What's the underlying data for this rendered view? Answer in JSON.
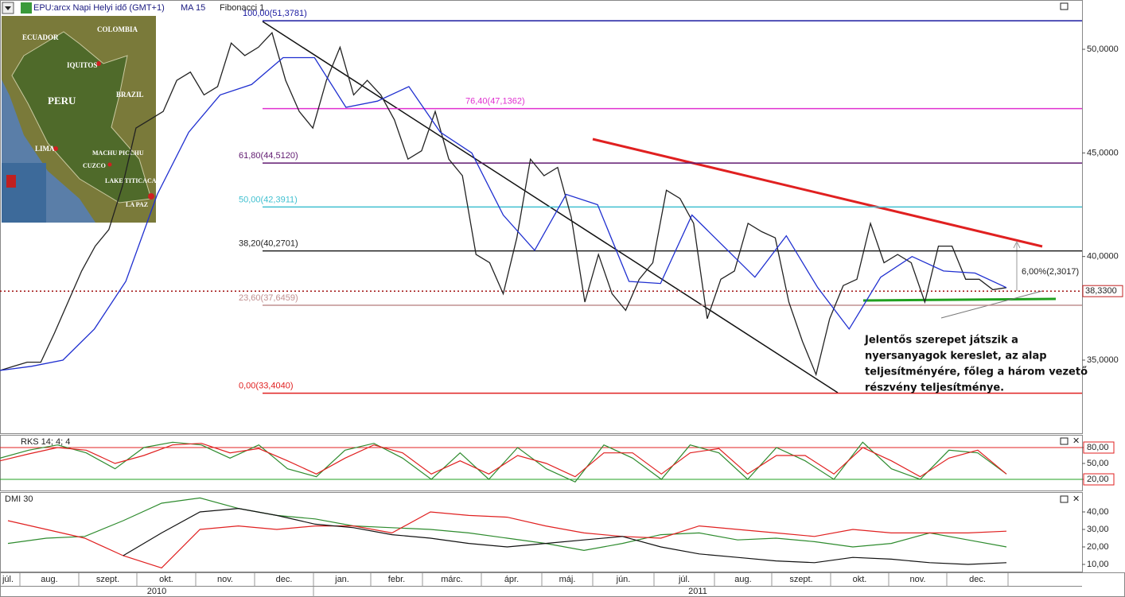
{
  "toolbar": {
    "symbol": "EPU:arcx Napi Helyi idő (GMT+1)",
    "ma": "MA 15",
    "fib": "Fibonacci 1"
  },
  "map": {
    "labels": [
      "ECUADOR",
      "COLOMBIA",
      "IQUITOS",
      "PERU",
      "BRAZIL",
      "LIMA",
      "MACHU PICCHU",
      "CUZCO",
      "LAKE TITICACA",
      "LA PAZ"
    ]
  },
  "x_axis": {
    "months": [
      "júl.",
      "aug.",
      "szept.",
      "okt.",
      "nov.",
      "dec.",
      "jan.",
      "febr.",
      "márc.",
      "ápr.",
      "máj.",
      "jún.",
      "júl.",
      "aug.",
      "szept.",
      "okt.",
      "nov.",
      "dec."
    ],
    "years": [
      "2010",
      "2011"
    ]
  },
  "chart_data": [
    {
      "type": "line",
      "ylim": [
        31.47,
        52.38
      ],
      "yticks": [
        {
          "value": 35,
          "label": "35,0000"
        },
        {
          "value": 40,
          "label": "40,0000"
        },
        {
          "value": 45,
          "label": "45,0000"
        },
        {
          "value": 50,
          "label": "50,0000"
        }
      ],
      "series": [
        {
          "color": "#222222",
          "values": [
            34.5,
            34.7,
            34.9,
            34.9,
            36.3,
            37.8,
            39.3,
            40.5,
            41.3,
            43.4,
            46.2,
            46.6,
            47.0,
            48.5,
            48.9,
            47.8,
            48.2,
            50.3,
            49.7,
            50.1,
            50.8,
            48.5,
            47.0,
            46.2,
            48.5,
            50.1,
            47.8,
            48.5,
            47.8,
            46.6,
            44.7,
            45.1,
            47.0,
            44.7,
            43.9,
            40.1,
            39.7,
            38.2,
            40.9,
            44.7,
            43.9,
            44.3,
            41.9,
            37.8,
            40.1,
            38.2,
            37.4,
            38.9,
            39.7,
            43.2,
            42.8,
            41.6,
            37.0,
            38.9,
            39.3,
            41.6,
            41.2,
            40.9,
            37.8,
            35.9,
            34.3,
            37.0,
            38.6,
            38.9,
            41.6,
            39.7,
            40.1,
            39.7,
            37.8,
            40.5,
            40.5,
            38.9,
            38.9,
            38.4,
            38.5
          ]
        },
        {
          "name": "MA 15",
          "color": "#1f2fd0",
          "values": [
            34.5,
            34.7,
            35.0,
            36.5,
            38.8,
            43.0,
            46.0,
            47.8,
            48.3,
            49.6,
            49.6,
            47.2,
            47.5,
            48.2,
            46.0,
            45.0,
            42.0,
            40.3,
            43.0,
            42.5,
            38.8,
            38.7,
            42.0,
            40.5,
            39.0,
            41.0,
            38.5,
            36.5,
            39.0,
            40.0,
            39.3,
            39.2,
            38.5
          ]
        }
      ],
      "fib_levels": [
        {
          "value": 51.3781,
          "label": "100,00(51,3781)",
          "color": "#1a1aa0"
        },
        {
          "value": 47.1362,
          "label": "76,40(47,1362)",
          "color": "#e030d0"
        },
        {
          "value": 44.512,
          "label": "61,80(44,5120)",
          "color": "#601a70"
        },
        {
          "value": 42.3911,
          "label": "50,00(42,3911)",
          "color": "#40c0d0"
        },
        {
          "value": 40.2701,
          "label": "38,20(40,2701)",
          "color": "#222222"
        },
        {
          "value": 37.6459,
          "label": "23,60(37,6459)",
          "color": "#c09090"
        },
        {
          "value": 33.404,
          "label": "0,00(33,4040)",
          "color": "#e02020"
        }
      ],
      "last_price": {
        "value": 38.33,
        "label": "38,3300"
      },
      "annotations": [
        "6,00%(2,3017)"
      ],
      "note": [
        "Jelentős szerepet játszik a",
        "nyersanyagok kereslet, az alap",
        "teljesítményére, főleg a három vezető",
        "részvény teljesítménye."
      ]
    },
    {
      "type": "line",
      "title": "RKS 14; 4; 4",
      "ylim": [
        -1,
        102.5
      ],
      "yticks": [
        {
          "value": 20,
          "label": "20,00"
        },
        {
          "value": 50,
          "label": "50,00"
        },
        {
          "value": 80,
          "label": "80,00"
        }
      ],
      "series": [
        {
          "color": "#2e8b2e",
          "values": [
            60,
            75,
            85,
            70,
            40,
            80,
            90,
            85,
            60,
            85,
            40,
            25,
            75,
            88,
            60,
            20,
            70,
            20,
            80,
            40,
            15,
            85,
            60,
            20,
            85,
            70,
            20,
            80,
            55,
            20,
            90,
            40,
            20,
            75,
            70,
            30
          ]
        },
        {
          "color": "#e02020",
          "values": [
            55,
            68,
            80,
            75,
            50,
            65,
            85,
            88,
            70,
            78,
            55,
            30,
            60,
            85,
            70,
            30,
            55,
            30,
            65,
            50,
            25,
            70,
            70,
            30,
            70,
            78,
            30,
            65,
            65,
            30,
            80,
            55,
            25,
            60,
            75,
            30
          ]
        }
      ]
    },
    {
      "type": "line",
      "title": "DMI 30",
      "ylim": [
        5.45,
        50.9
      ],
      "yticks": [
        {
          "value": 10,
          "label": "10,00"
        },
        {
          "value": 20,
          "label": "20,00"
        },
        {
          "value": 30,
          "label": "30,00"
        },
        {
          "value": 40,
          "label": "40,00"
        }
      ],
      "series": [
        {
          "color": "#2e8b2e",
          "values": [
            22,
            25,
            26,
            35,
            45,
            48,
            42,
            38,
            36,
            32,
            31,
            30,
            28,
            25,
            22,
            18,
            22,
            27,
            28,
            24,
            25,
            23,
            20,
            22,
            28,
            24,
            20
          ]
        },
        {
          "color": "#e02020",
          "values": [
            35,
            30,
            25,
            15,
            8,
            30,
            32,
            30,
            32,
            32,
            28,
            40,
            38,
            37,
            32,
            28,
            26,
            25,
            32,
            30,
            28,
            26,
            30,
            28,
            28,
            28,
            29
          ]
        },
        {
          "color": "#111111",
          "values": [
            null,
            null,
            null,
            15,
            28,
            40,
            42,
            38,
            33,
            31,
            27,
            25,
            22,
            20,
            22,
            24,
            26,
            20,
            16,
            14,
            12,
            11,
            14,
            13,
            11,
            10,
            11
          ]
        }
      ]
    }
  ]
}
